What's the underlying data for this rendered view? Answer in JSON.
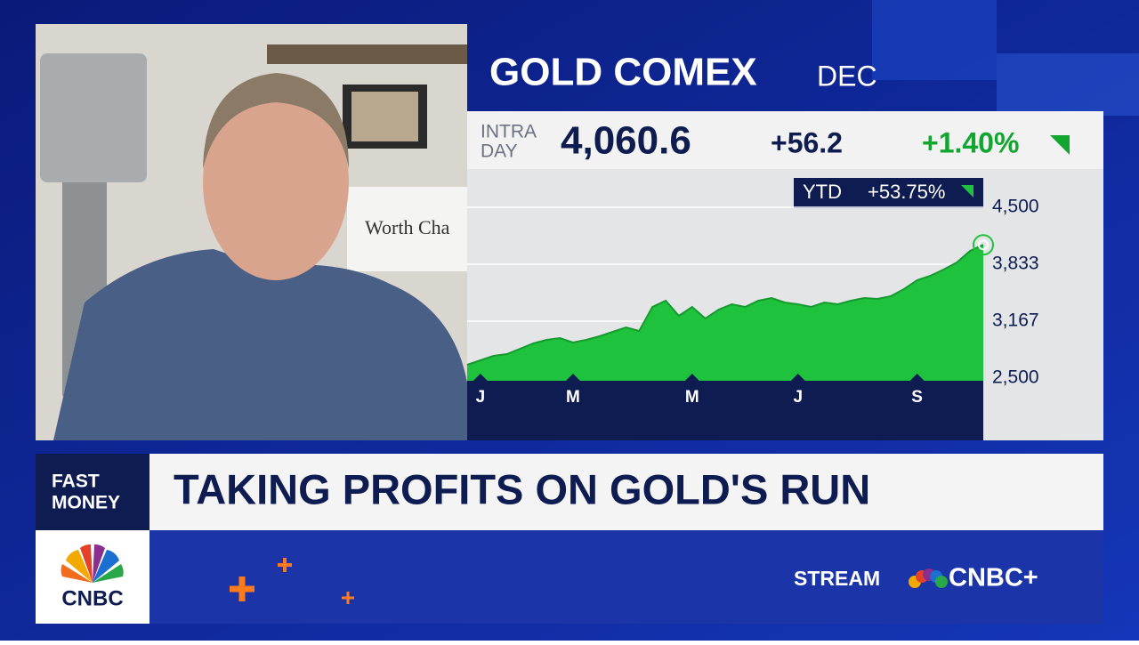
{
  "chart_data": {
    "type": "area",
    "title": "GOLD COMEX",
    "subtitle": "DEC",
    "categories": [
      null,
      "J",
      null,
      null,
      null,
      null,
      null,
      null,
      "M",
      null,
      null,
      null,
      null,
      null,
      null,
      null,
      null,
      "M",
      null,
      null,
      null,
      null,
      null,
      null,
      null,
      "J",
      null,
      null,
      null,
      null,
      null,
      null,
      null,
      null,
      "S",
      null,
      null,
      null,
      null,
      null
    ],
    "values": [
      2656,
      2708,
      2760,
      2781,
      2844,
      2906,
      2948,
      2969,
      2917,
      2948,
      2990,
      3042,
      3094,
      3052,
      3333,
      3406,
      3229,
      3333,
      3198,
      3302,
      3365,
      3333,
      3406,
      3438,
      3385,
      3365,
      3333,
      3385,
      3365,
      3406,
      3438,
      3427,
      3458,
      3542,
      3646,
      3698,
      3771,
      3854,
      3990,
      4060
    ],
    "color": "#1fc23c",
    "ylim": [
      2500,
      4500
    ],
    "yticks": [
      {
        "value": 2500,
        "label": "2,500"
      },
      {
        "value": 3167,
        "label": "3,167"
      },
      {
        "value": 3833,
        "label": "3,833"
      },
      {
        "value": 4500,
        "label": "4,500"
      }
    ],
    "grid": true
  },
  "quote": {
    "intra": "INTRA",
    "day": "DAY",
    "price": "4,060.6",
    "change": "+56.2",
    "percent": "+1.40%",
    "ytd_label": "YTD",
    "ytd": "+53.75%"
  },
  "video": {
    "sign": "Worth Cha"
  },
  "banner": {
    "show_line1": "FAST",
    "show_line2": "MONEY",
    "headline": "TAKING PROFITS ON GOLD'S RUN",
    "stream": "STREAM",
    "network_plus": "CNBC+",
    "logo": "CNBC"
  }
}
